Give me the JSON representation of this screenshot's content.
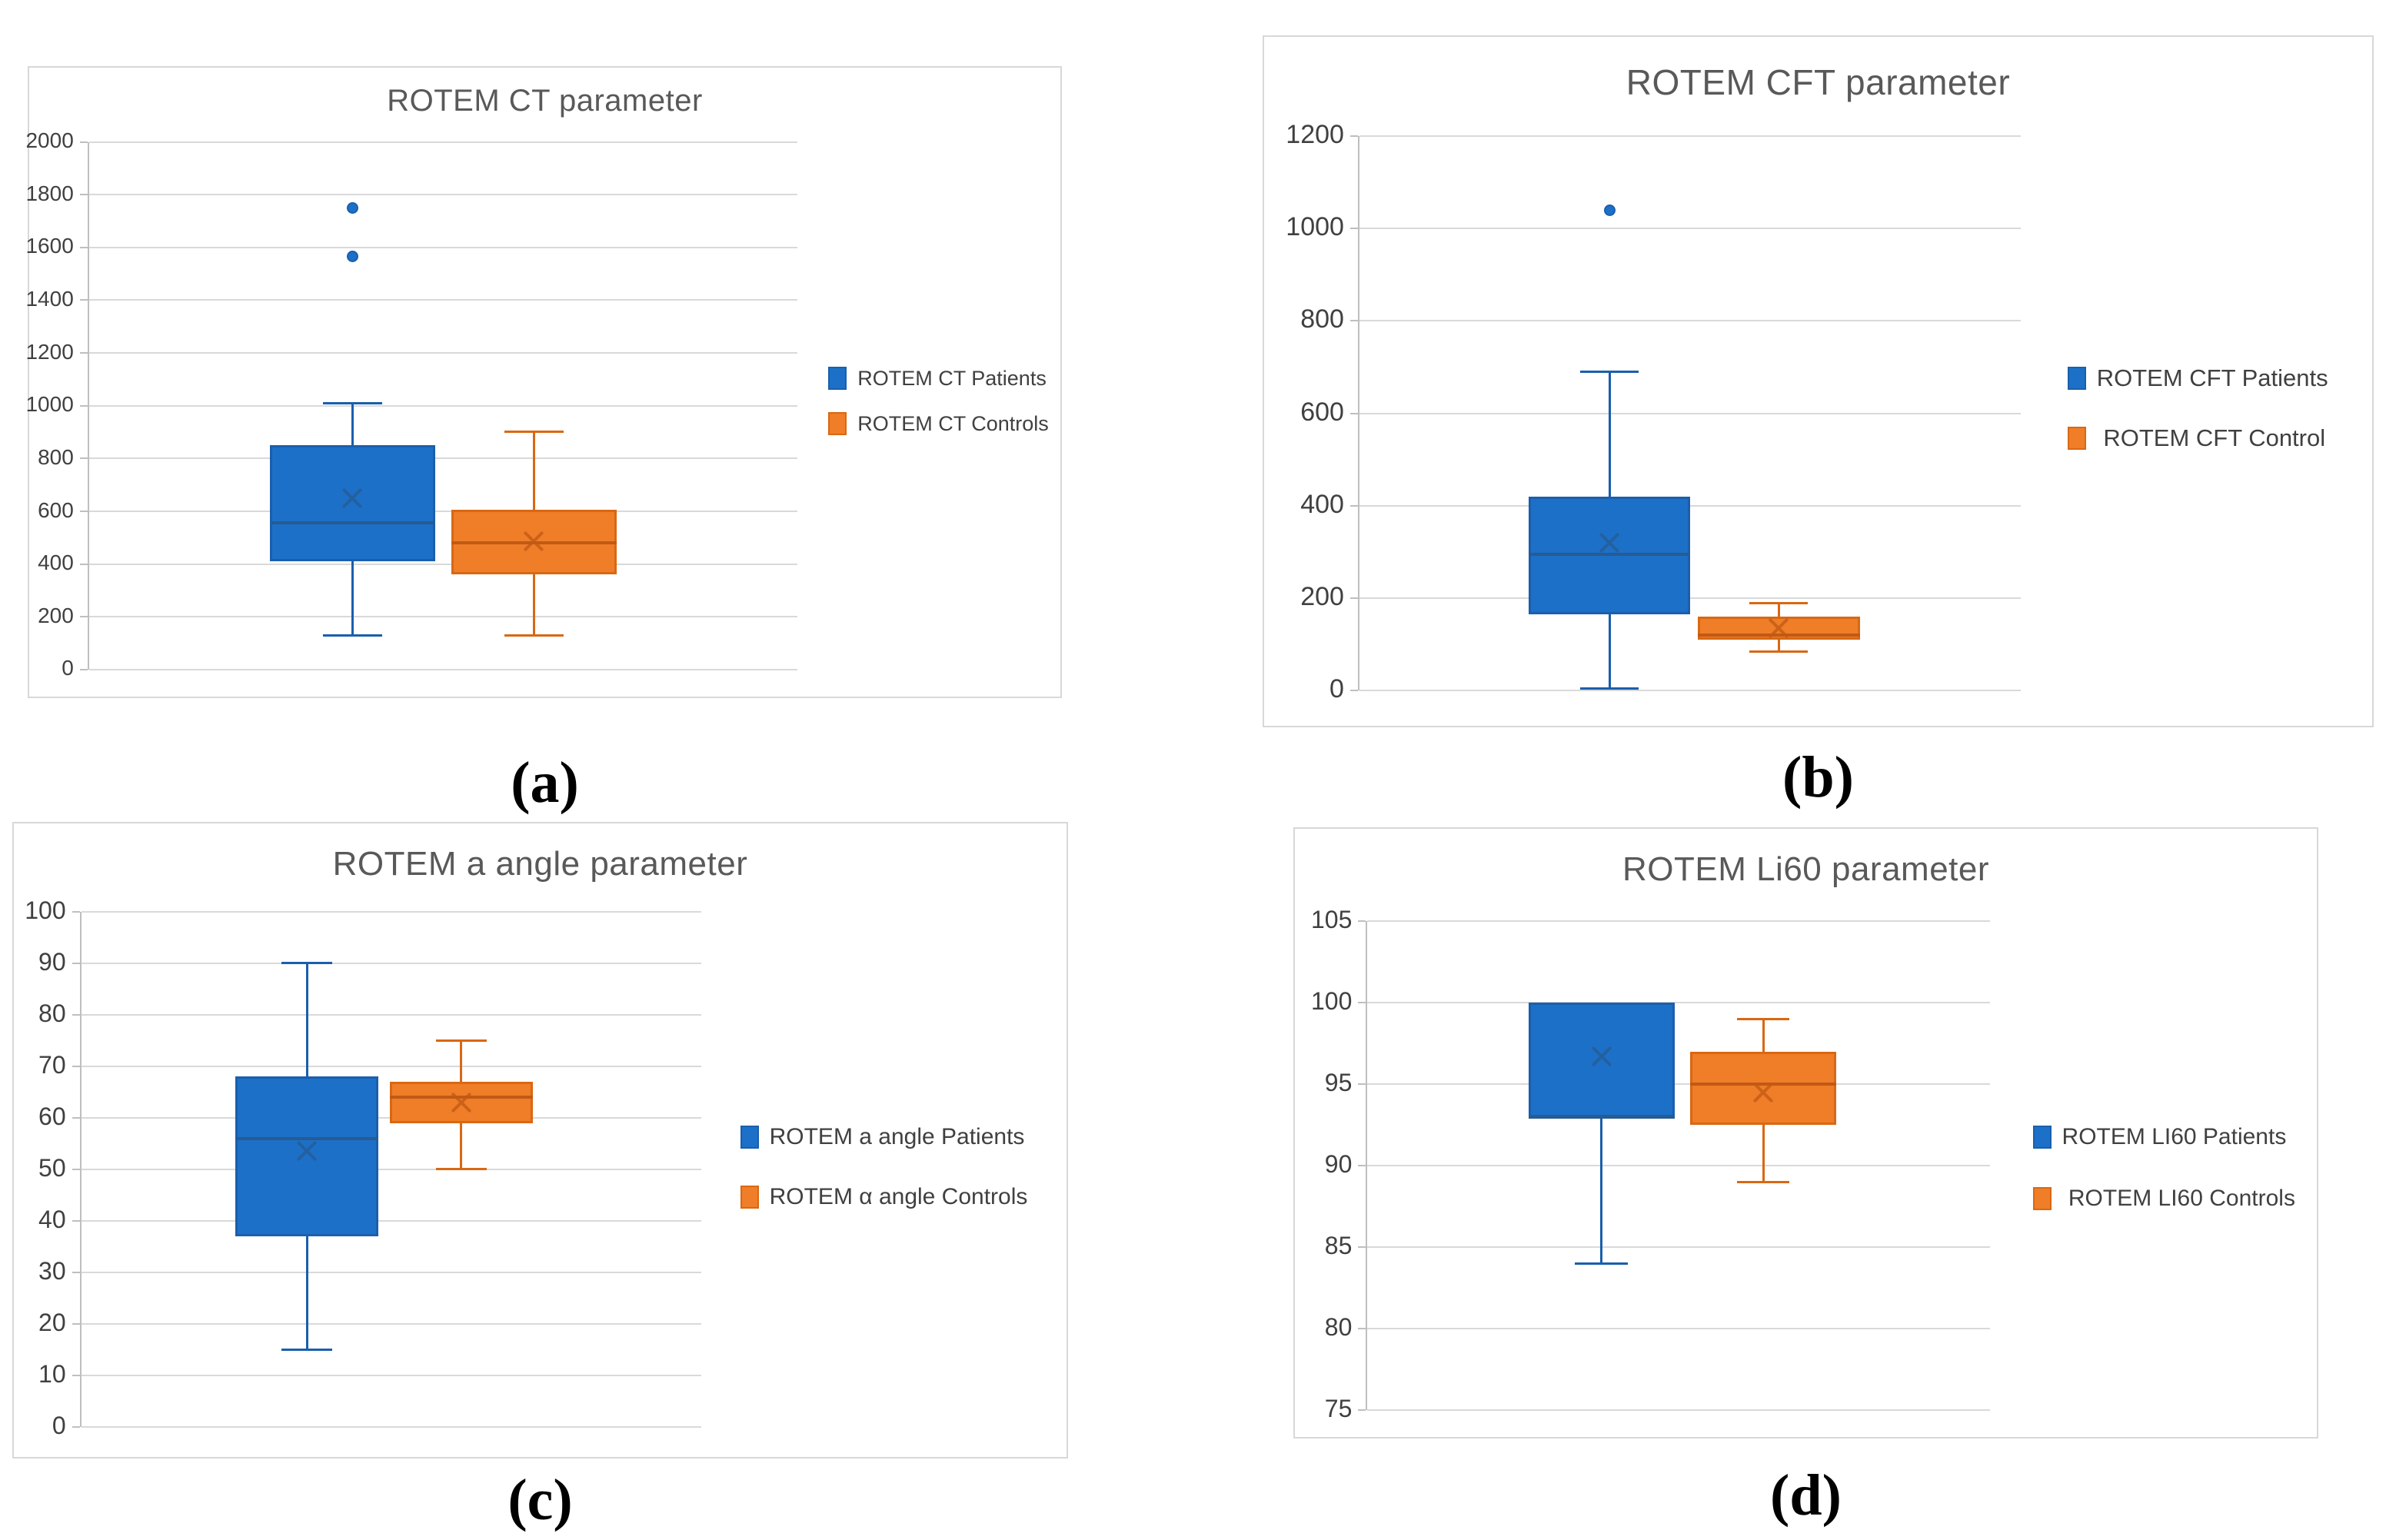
{
  "figure": {
    "panel_labels": [
      "(a)",
      "(b)",
      "(c)",
      "(d)"
    ]
  },
  "colors": {
    "patients_fill": "#1D70C7",
    "patients_border": "#1A5FAD",
    "patients_detail": "#275B92",
    "controls_fill": "#F07D28",
    "controls_border": "#D96813",
    "controls_detail": "#C05A15",
    "gridline": "#D9D9D9",
    "axis_line": "#BFBFBF",
    "title_text": "#595959",
    "tick_text": "#404040"
  },
  "chart_data": [
    {
      "type": "box",
      "panel": "a",
      "title": "ROTEM CT parameter",
      "xlabel": "",
      "ylabel": "",
      "ylim": [
        0,
        2000
      ],
      "ytick_step": 200,
      "yticks": [
        0,
        200,
        400,
        600,
        800,
        1000,
        1200,
        1400,
        1600,
        1800,
        2000
      ],
      "grid": true,
      "legend_position": "right",
      "legend": [
        "ROTEM CT Patients",
        "ROTEM CT Controls"
      ],
      "series": [
        {
          "name": "ROTEM CT Patients",
          "group": "patients",
          "whisker_low": 130,
          "q1": 410,
          "median": 555,
          "mean": 650,
          "q3": 850,
          "whisker_high": 1010,
          "outliers": [
            1565,
            1750
          ]
        },
        {
          "name": "ROTEM CT Controls",
          "group": "controls",
          "whisker_low": 130,
          "q1": 360,
          "median": 480,
          "mean": 485,
          "q3": 605,
          "whisker_high": 900,
          "outliers": []
        }
      ]
    },
    {
      "type": "box",
      "panel": "b",
      "title": "ROTEM CFT parameter",
      "xlabel": "",
      "ylabel": "",
      "ylim": [
        0,
        1200
      ],
      "ytick_step": 200,
      "yticks": [
        0,
        200,
        400,
        600,
        800,
        1000,
        1200
      ],
      "grid": true,
      "legend_position": "right",
      "legend": [
        "ROTEM CFT Patients",
        " ROTEM CFT Control"
      ],
      "series": [
        {
          "name": "ROTEM CFT Patients",
          "group": "patients",
          "whisker_low": 5,
          "q1": 165,
          "median": 295,
          "mean": 320,
          "q3": 420,
          "whisker_high": 690,
          "outliers": [
            1040
          ]
        },
        {
          "name": "ROTEM CFT Control",
          "group": "controls",
          "whisker_low": 85,
          "q1": 110,
          "median": 120,
          "mean": 135,
          "q3": 160,
          "whisker_high": 190,
          "outliers": []
        }
      ]
    },
    {
      "type": "box",
      "panel": "c",
      "title": "ROTEM a angle parameter",
      "xlabel": "",
      "ylabel": "",
      "ylim": [
        0,
        100
      ],
      "ytick_step": 10,
      "yticks": [
        0,
        10,
        20,
        30,
        40,
        50,
        60,
        70,
        80,
        90,
        100
      ],
      "grid": true,
      "legend_position": "right",
      "legend": [
        "ROTEM a angle Patients",
        "ROTEM α angle Controls"
      ],
      "series": [
        {
          "name": "ROTEM a angle Patients",
          "group": "patients",
          "whisker_low": 15,
          "q1": 37,
          "median": 56,
          "mean": 53.5,
          "q3": 68,
          "whisker_high": 90,
          "outliers": []
        },
        {
          "name": "ROTEM α angle Controls",
          "group": "controls",
          "whisker_low": 50,
          "q1": 59,
          "median": 64,
          "mean": 63,
          "q3": 67,
          "whisker_high": 75,
          "outliers": []
        }
      ]
    },
    {
      "type": "box",
      "panel": "d",
      "title": "ROTEM Li60 parameter",
      "xlabel": "",
      "ylabel": "",
      "ylim": [
        75,
        105
      ],
      "ytick_step": 5,
      "yticks": [
        75,
        80,
        85,
        90,
        95,
        100,
        105
      ],
      "grid": true,
      "legend_position": "right",
      "legend": [
        "ROTEM LI60 Patients",
        " ROTEM LI60 Controls"
      ],
      "series": [
        {
          "name": "ROTEM LI60 Patients",
          "group": "patients",
          "whisker_low": 84,
          "q1": 93,
          "median": 93,
          "mean": 96.7,
          "q3": 100,
          "whisker_high": 100,
          "outliers": []
        },
        {
          "name": "ROTEM LI60 Controls",
          "group": "controls",
          "whisker_low": 89,
          "q1": 92.5,
          "median": 95,
          "mean": 94.5,
          "q3": 97,
          "whisker_high": 99,
          "outliers": []
        }
      ]
    }
  ]
}
